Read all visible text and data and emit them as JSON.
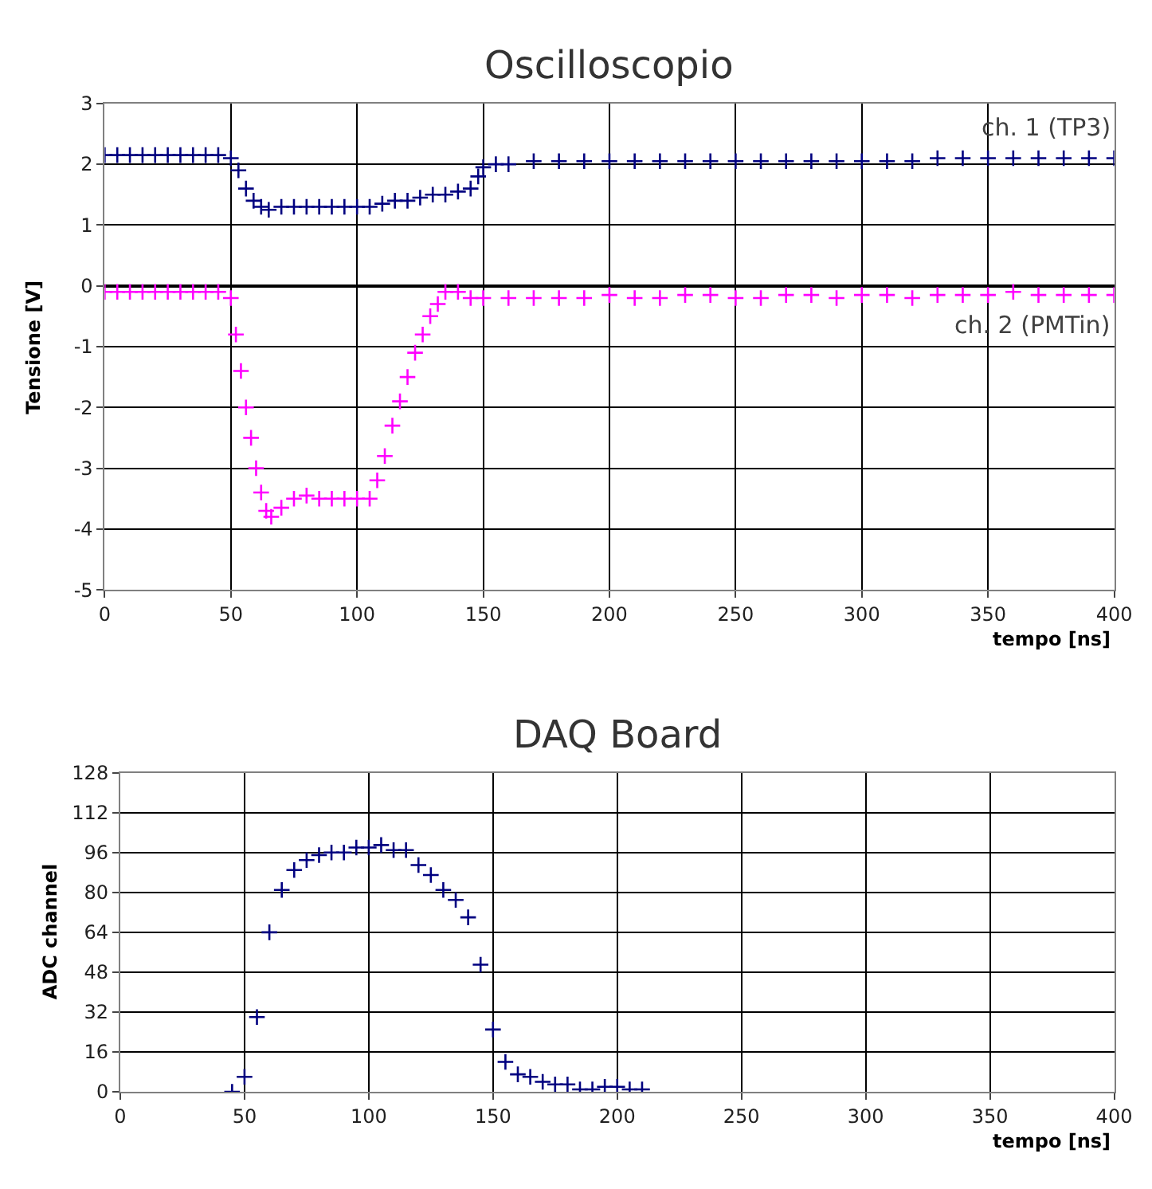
{
  "chart_data": [
    {
      "type": "scatter",
      "title": "Oscilloscopio",
      "xlabel": "tempo [ns]",
      "ylabel": "Tensione [V]",
      "xlim": [
        0,
        400
      ],
      "xticks": [
        0,
        50,
        100,
        150,
        200,
        250,
        300,
        350,
        400
      ],
      "ylim": [
        -5,
        3
      ],
      "yticks": [
        -5,
        -4,
        -3,
        -2,
        -1,
        0,
        1,
        2,
        3
      ],
      "grid": true,
      "legend": false,
      "marker": "cross",
      "series": [
        {
          "name": "ch. 1 (TP3)",
          "color": "#000080",
          "x": [
            0,
            5,
            10,
            15,
            20,
            25,
            30,
            35,
            40,
            45,
            50,
            53,
            56,
            59,
            62,
            65,
            70,
            75,
            80,
            85,
            90,
            95,
            100,
            105,
            110,
            115,
            120,
            125,
            130,
            135,
            140,
            145,
            148,
            150,
            155,
            160,
            170,
            180,
            190,
            200,
            210,
            220,
            230,
            240,
            250,
            260,
            270,
            280,
            290,
            300,
            310,
            320,
            330,
            340,
            350,
            360,
            370,
            380,
            390,
            400
          ],
          "values": [
            2.15,
            2.15,
            2.15,
            2.15,
            2.15,
            2.15,
            2.15,
            2.15,
            2.15,
            2.15,
            2.1,
            1.9,
            1.6,
            1.4,
            1.3,
            1.25,
            1.3,
            1.3,
            1.3,
            1.3,
            1.3,
            1.3,
            1.3,
            1.3,
            1.35,
            1.4,
            1.4,
            1.45,
            1.5,
            1.5,
            1.55,
            1.6,
            1.8,
            1.95,
            2.0,
            2.0,
            2.05,
            2.05,
            2.05,
            2.05,
            2.05,
            2.05,
            2.05,
            2.05,
            2.05,
            2.05,
            2.05,
            2.05,
            2.05,
            2.05,
            2.05,
            2.05,
            2.1,
            2.1,
            2.1,
            2.1,
            2.1,
            2.1,
            2.1,
            2.1
          ]
        },
        {
          "name": "ch. 2 (PMTin)",
          "color": "#ff00ff",
          "x": [
            0,
            5,
            10,
            15,
            20,
            25,
            30,
            35,
            40,
            45,
            50,
            52,
            54,
            56,
            58,
            60,
            62,
            64,
            66,
            70,
            75,
            80,
            85,
            90,
            95,
            100,
            105,
            108,
            111,
            114,
            117,
            120,
            123,
            126,
            129,
            132,
            135,
            140,
            145,
            150,
            160,
            170,
            180,
            190,
            200,
            210,
            220,
            230,
            240,
            250,
            260,
            270,
            280,
            290,
            300,
            310,
            320,
            330,
            340,
            350,
            360,
            370,
            380,
            390,
            400
          ],
          "values": [
            -0.1,
            -0.1,
            -0.1,
            -0.1,
            -0.1,
            -0.1,
            -0.1,
            -0.1,
            -0.1,
            -0.1,
            -0.2,
            -0.8,
            -1.4,
            -2.0,
            -2.5,
            -3.0,
            -3.4,
            -3.7,
            -3.8,
            -3.65,
            -3.5,
            -3.45,
            -3.5,
            -3.5,
            -3.5,
            -3.5,
            -3.5,
            -3.2,
            -2.8,
            -2.3,
            -1.9,
            -1.5,
            -1.1,
            -0.8,
            -0.5,
            -0.3,
            -0.1,
            -0.1,
            -0.2,
            -0.2,
            -0.2,
            -0.2,
            -0.2,
            -0.2,
            -0.15,
            -0.2,
            -0.2,
            -0.15,
            -0.15,
            -0.2,
            -0.2,
            -0.15,
            -0.15,
            -0.2,
            -0.15,
            -0.15,
            -0.2,
            -0.15,
            -0.15,
            -0.15,
            -0.1,
            -0.15,
            -0.15,
            -0.15,
            -0.15
          ]
        }
      ]
    },
    {
      "type": "scatter",
      "title": "DAQ Board",
      "xlabel": "tempo [ns]",
      "ylabel": "ADC channel",
      "xlim": [
        0,
        400
      ],
      "xticks": [
        0,
        50,
        100,
        150,
        200,
        250,
        300,
        350,
        400
      ],
      "ylim": [
        0,
        128
      ],
      "yticks": [
        0,
        16,
        32,
        48,
        64,
        80,
        96,
        112,
        128
      ],
      "grid": true,
      "legend": false,
      "marker": "cross",
      "series": [
        {
          "color": "#000080",
          "x": [
            45,
            50,
            55,
            60,
            65,
            70,
            75,
            80,
            85,
            90,
            95,
            100,
            105,
            110,
            115,
            120,
            125,
            130,
            135,
            140,
            145,
            150,
            155,
            160,
            165,
            170,
            175,
            180,
            185,
            190,
            195,
            200,
            205,
            210
          ],
          "values": [
            0,
            6,
            30,
            64,
            81,
            89,
            93,
            95,
            96,
            96,
            98,
            98,
            99,
            97,
            97,
            91,
            87,
            81,
            77,
            70,
            51,
            25,
            12,
            7,
            6,
            4,
            3,
            3,
            1,
            1,
            2,
            2,
            1,
            1
          ]
        }
      ]
    }
  ]
}
